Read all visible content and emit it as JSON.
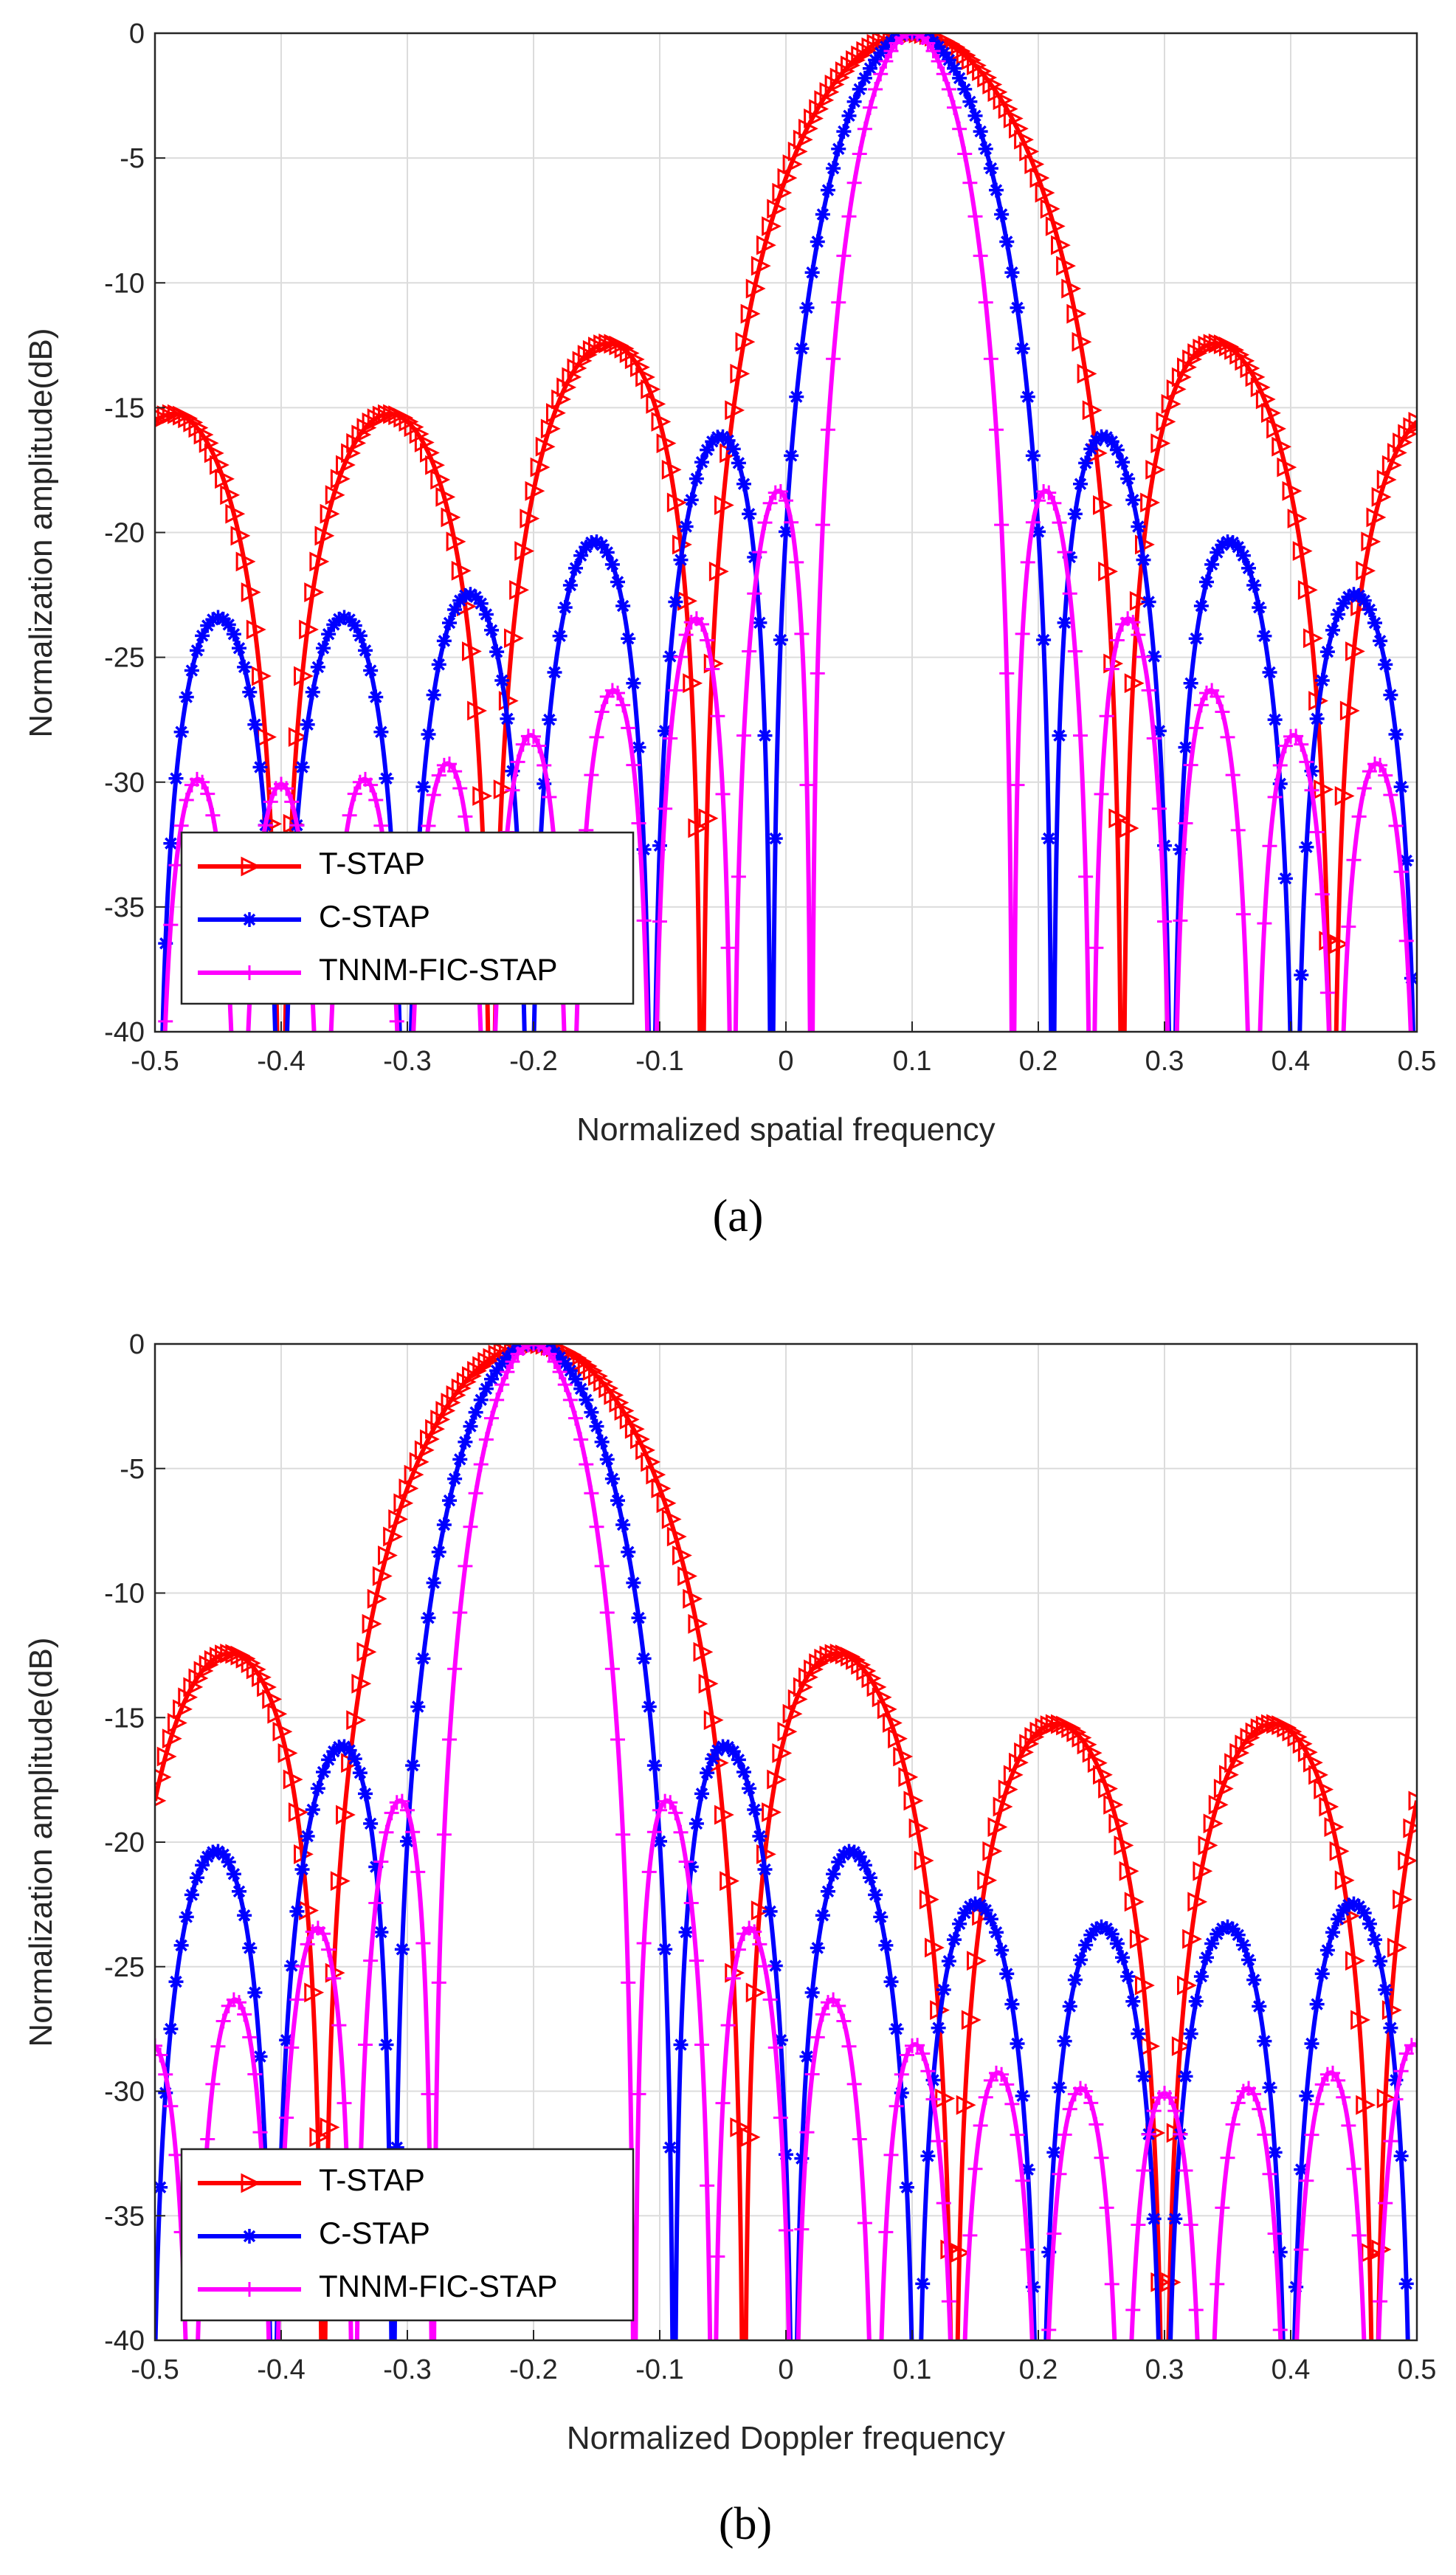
{
  "chart_data": [
    {
      "type": "line",
      "id": "a",
      "caption": "(a)",
      "xlabel": "Normalized spatial frequency",
      "ylabel": "Normalization amplitude(dB)",
      "xlim": [
        -0.5,
        0.5
      ],
      "ylim": [
        -40,
        0
      ],
      "xticks": [
        -0.5,
        -0.4,
        -0.3,
        -0.2,
        -0.1,
        0,
        0.1,
        0.2,
        0.3,
        0.4,
        0.5
      ],
      "xtick_labels": [
        "-0.5",
        "-0.4",
        "-0.3",
        "-0.2",
        "-0.1",
        "0",
        "0.1",
        "0.2",
        "0.3",
        "0.4",
        "0.5"
      ],
      "yticks": [
        0,
        -5,
        -10,
        -15,
        -20,
        -25,
        -30,
        -35,
        -40
      ],
      "ytick_labels": [
        "0",
        "-5",
        "-10",
        "-15",
        "-20",
        "-25",
        "-30",
        "-35",
        "-40"
      ],
      "grid": true,
      "legend_position": "bottom-left",
      "series": [
        {
          "name": "T-STAP",
          "color": "#ff0000",
          "marker": "triangle-right",
          "center": 0.1,
          "N": 6,
          "spacing": 1,
          "taper": 0,
          "floor": 0.003
        },
        {
          "name": "C-STAP",
          "color": "#0000ff",
          "marker": "asterisk",
          "center": 0.1,
          "N": 10,
          "spacing": 1,
          "taper": 0.35,
          "floor": 0.004
        },
        {
          "name": "TNNM-FIC-STAP",
          "color": "#ff00ff",
          "marker": "plus",
          "center": 0.1,
          "N": 15,
          "spacing": 1,
          "taper": 0.55,
          "floor": 0.003
        }
      ]
    },
    {
      "type": "line",
      "id": "b",
      "caption": "(b)",
      "xlabel": "Normalized Doppler frequency",
      "ylabel": "Normalization amplitude(dB)",
      "xlim": [
        -0.5,
        0.5
      ],
      "ylim": [
        -40,
        0
      ],
      "xticks": [
        -0.5,
        -0.4,
        -0.3,
        -0.2,
        -0.1,
        0,
        0.1,
        0.2,
        0.3,
        0.4,
        0.5
      ],
      "xtick_labels": [
        "-0.5",
        "-0.4",
        "-0.3",
        "-0.2",
        "-0.1",
        "0",
        "0.1",
        "0.2",
        "0.3",
        "0.4",
        "0.5"
      ],
      "yticks": [
        0,
        -5,
        -10,
        -15,
        -20,
        -25,
        -30,
        -35,
        -40
      ],
      "ytick_labels": [
        "0",
        "-5",
        "-10",
        "-15",
        "-20",
        "-25",
        "-30",
        "-35",
        "-40"
      ],
      "grid": true,
      "legend_position": "bottom-left",
      "series": [
        {
          "name": "T-STAP",
          "color": "#ff0000",
          "marker": "triangle-right",
          "center": -0.2,
          "N": 6,
          "spacing": 1,
          "taper": 0,
          "floor": 0.003
        },
        {
          "name": "C-STAP",
          "color": "#0000ff",
          "marker": "asterisk",
          "center": -0.2,
          "N": 10,
          "spacing": 1,
          "taper": 0.35,
          "floor": 0.004
        },
        {
          "name": "TNNM-FIC-STAP",
          "color": "#ff00ff",
          "marker": "plus",
          "center": -0.2,
          "N": 15,
          "spacing": 1,
          "taper": 0.55,
          "floor": 0.003
        }
      ]
    }
  ]
}
